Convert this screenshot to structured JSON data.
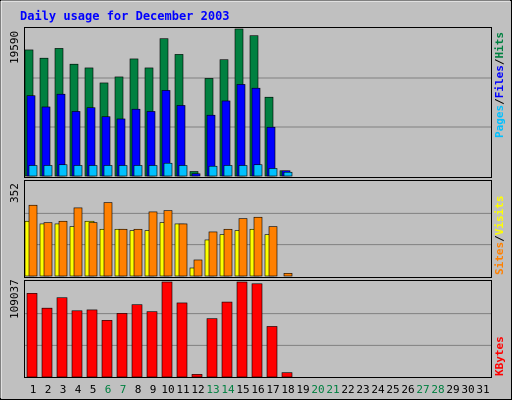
{
  "title": "Daily usage for December 2003",
  "colors": {
    "background": "#c0c0c0",
    "panel": "#c0c0c0",
    "title": "#0000ff",
    "hits": "#008040",
    "files": "#0000ff",
    "pages": "#00c0ff",
    "visits": "#ffff00",
    "sites": "#ff8000",
    "kbytes": "#ff0000",
    "weekend_day": "#008040",
    "weekday_day": "#000000",
    "grid": "#808080"
  },
  "chart_data": [
    {
      "type": "bar",
      "panel": "hits_files_pages",
      "title": "Daily usage for December 2003",
      "ymax_label": "19590",
      "ylim": [
        0,
        19590
      ],
      "legend": [
        "Pages",
        "/",
        "Files",
        "/",
        "Hits"
      ],
      "categories": [
        "1",
        "2",
        "3",
        "4",
        "5",
        "6",
        "7",
        "8",
        "9",
        "10",
        "11",
        "12",
        "13",
        "14",
        "15",
        "16",
        "17",
        "18",
        "19",
        "20",
        "21",
        "22",
        "23",
        "24",
        "25",
        "26",
        "27",
        "28",
        "29",
        "30",
        "31"
      ],
      "series": [
        {
          "name": "Hits",
          "values": [
            16800,
            15700,
            17000,
            14900,
            14400,
            12400,
            13200,
            15600,
            14400,
            18300,
            16200,
            600,
            13000,
            15500,
            19590,
            18700,
            10500,
            700,
            0,
            0,
            0,
            0,
            0,
            0,
            0,
            0,
            0,
            0,
            0,
            0,
            0
          ]
        },
        {
          "name": "Files",
          "values": [
            10700,
            9200,
            10900,
            8600,
            9100,
            7900,
            7600,
            8900,
            8600,
            11400,
            9400,
            300,
            8100,
            10000,
            12200,
            11700,
            6500,
            700,
            0,
            0,
            0,
            0,
            0,
            0,
            0,
            0,
            0,
            0,
            0,
            0,
            0
          ]
        },
        {
          "name": "Pages",
          "values": [
            1400,
            1400,
            1500,
            1400,
            1400,
            1400,
            1400,
            1400,
            1400,
            1700,
            1400,
            0,
            1300,
            1400,
            1400,
            1500,
            1000,
            500,
            0,
            0,
            0,
            0,
            0,
            0,
            0,
            0,
            0,
            0,
            0,
            0,
            0
          ]
        }
      ]
    },
    {
      "type": "bar",
      "panel": "sites_visits",
      "ymax_label": "352",
      "ylim": [
        0,
        352
      ],
      "legend": [
        "Sites",
        "/",
        "Visits"
      ],
      "categories": [
        "1",
        "2",
        "3",
        "4",
        "5",
        "6",
        "7",
        "8",
        "9",
        "10",
        "11",
        "12",
        "13",
        "14",
        "15",
        "16",
        "17",
        "18",
        "19",
        "20",
        "21",
        "22",
        "23",
        "24",
        "25",
        "26",
        "27",
        "28",
        "29",
        "30",
        "31"
      ],
      "series": [
        {
          "name": "Visits",
          "values": [
            205,
            195,
            195,
            185,
            205,
            175,
            175,
            170,
            170,
            200,
            195,
            30,
            135,
            155,
            170,
            175,
            155,
            0,
            0,
            0,
            0,
            0,
            0,
            0,
            0,
            0,
            0,
            0,
            0,
            0,
            0
          ]
        },
        {
          "name": "Sites",
          "values": [
            265,
            200,
            205,
            255,
            200,
            275,
            175,
            175,
            240,
            245,
            195,
            60,
            165,
            175,
            215,
            220,
            185,
            10,
            0,
            0,
            0,
            0,
            0,
            0,
            0,
            0,
            0,
            0,
            0,
            0,
            0
          ]
        }
      ]
    },
    {
      "type": "bar",
      "panel": "kbytes",
      "ymax_label": "109037",
      "ylim": [
        0,
        109037
      ],
      "legend": [
        "KBytes"
      ],
      "categories": [
        "1",
        "2",
        "3",
        "4",
        "5",
        "6",
        "7",
        "8",
        "9",
        "10",
        "11",
        "12",
        "13",
        "14",
        "15",
        "16",
        "17",
        "18",
        "19",
        "20",
        "21",
        "22",
        "23",
        "24",
        "25",
        "26",
        "27",
        "28",
        "29",
        "30",
        "31"
      ],
      "series": [
        {
          "name": "KBytes",
          "values": [
            96000,
            79000,
            91000,
            76000,
            77000,
            65000,
            73000,
            83000,
            75000,
            109037,
            85000,
            3000,
            67000,
            86000,
            109037,
            107000,
            58000,
            5000,
            0,
            0,
            0,
            0,
            0,
            0,
            0,
            0,
            0,
            0,
            0,
            0,
            0
          ]
        }
      ]
    }
  ],
  "weekend_days": [
    6,
    7,
    13,
    14,
    20,
    21,
    27,
    28
  ]
}
